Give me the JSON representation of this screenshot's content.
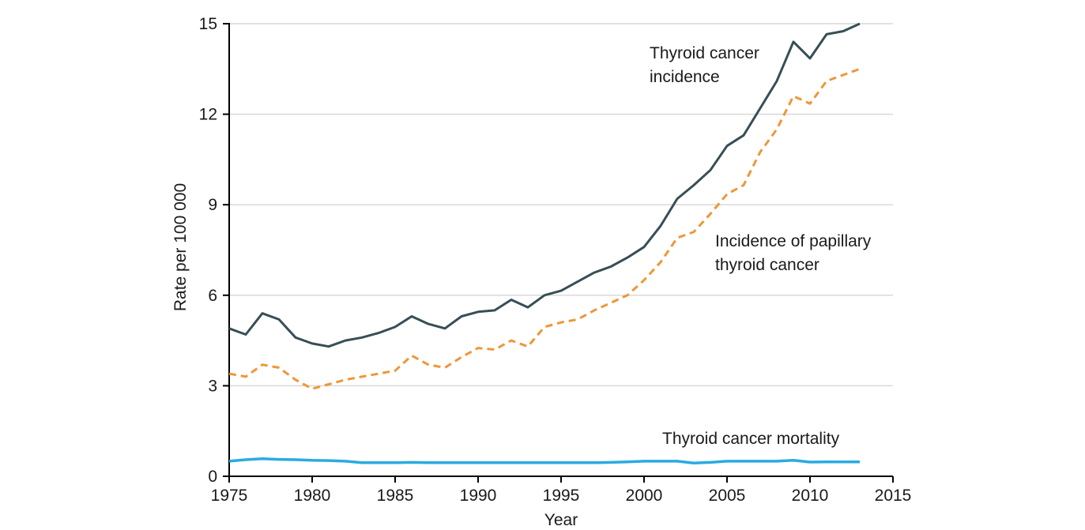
{
  "chart_data": {
    "type": "line",
    "title": "",
    "xlabel": "Year",
    "ylabel": "Rate per 100 000",
    "xlim": [
      1975,
      2015
    ],
    "ylim": [
      0,
      15
    ],
    "xticks": [
      1975,
      1980,
      1985,
      1990,
      1995,
      2000,
      2005,
      2010,
      2015
    ],
    "yticks": [
      0,
      3,
      6,
      9,
      12,
      15
    ],
    "grid": "horizontal",
    "legend_position": "inline-annotations",
    "colors": {
      "grid": "#d9d9d9",
      "axis": "#000000",
      "text": "#1a1a1a"
    },
    "x": [
      1975,
      1976,
      1977,
      1978,
      1979,
      1980,
      1981,
      1982,
      1983,
      1984,
      1985,
      1986,
      1987,
      1988,
      1989,
      1990,
      1991,
      1992,
      1993,
      1994,
      1995,
      1996,
      1997,
      1998,
      1999,
      2000,
      2001,
      2002,
      2003,
      2004,
      2005,
      2006,
      2007,
      2008,
      2009,
      2010,
      2011,
      2012,
      2013
    ],
    "series": [
      {
        "name": "Thyroid cancer incidence",
        "color": "#374e55",
        "style": "solid",
        "width": 3,
        "values": [
          4.9,
          4.7,
          5.4,
          5.2,
          4.6,
          4.4,
          4.3,
          4.5,
          4.6,
          4.75,
          4.95,
          5.3,
          5.05,
          4.9,
          5.3,
          5.45,
          5.5,
          5.85,
          5.6,
          6.0,
          6.15,
          6.45,
          6.75,
          6.95,
          7.25,
          7.6,
          8.3,
          9.2,
          9.65,
          10.15,
          10.95,
          11.3,
          12.2,
          13.1,
          14.4,
          13.85,
          14.65,
          14.75,
          15.0
        ]
      },
      {
        "name": "Incidence of papillary thyroid cancer",
        "color": "#ef9638",
        "style": "dashed",
        "width": 3,
        "values": [
          3.4,
          3.3,
          3.7,
          3.6,
          3.2,
          2.9,
          3.05,
          3.2,
          3.3,
          3.4,
          3.5,
          4.0,
          3.7,
          3.6,
          3.95,
          4.25,
          4.2,
          4.5,
          4.3,
          4.95,
          5.1,
          5.2,
          5.5,
          5.75,
          6.0,
          6.5,
          7.1,
          7.9,
          8.1,
          8.7,
          9.35,
          9.65,
          10.75,
          11.5,
          12.6,
          12.35,
          13.1,
          13.3,
          13.5
        ]
      },
      {
        "name": "Thyroid cancer mortality",
        "color": "#29abe2",
        "style": "solid",
        "width": 3.5,
        "values": [
          0.5,
          0.55,
          0.58,
          0.56,
          0.55,
          0.53,
          0.52,
          0.5,
          0.45,
          0.45,
          0.45,
          0.46,
          0.45,
          0.45,
          0.45,
          0.45,
          0.45,
          0.45,
          0.45,
          0.45,
          0.45,
          0.45,
          0.45,
          0.46,
          0.48,
          0.5,
          0.5,
          0.5,
          0.44,
          0.46,
          0.5,
          0.5,
          0.5,
          0.5,
          0.53,
          0.47,
          0.48,
          0.48,
          0.48
        ]
      }
    ],
    "annotations": [
      {
        "lines": [
          "Thyroid cancer",
          "incidence"
        ]
      },
      {
        "lines": [
          "Incidence of papillary",
          "thyroid cancer"
        ]
      },
      {
        "lines": [
          "Thyroid cancer mortality"
        ]
      }
    ]
  }
}
